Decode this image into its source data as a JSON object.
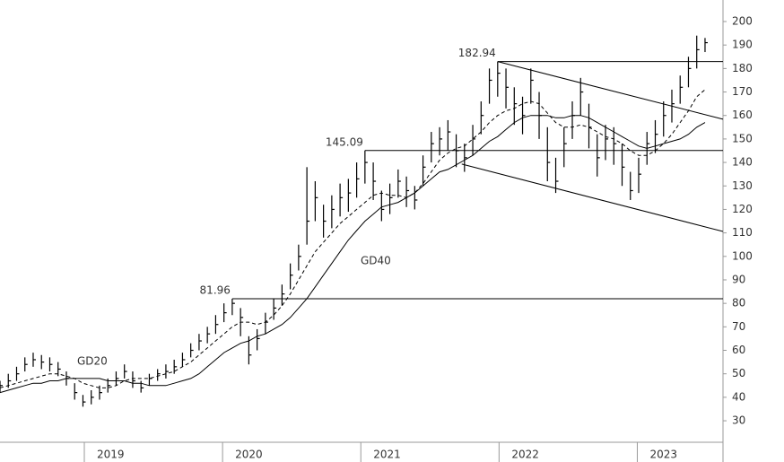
{
  "chart_data": {
    "type": "ohlc",
    "color": "#000000",
    "xlim": [
      2018.39,
      2023.62
    ],
    "xticks": [
      2019,
      2020,
      2021,
      2022,
      2023
    ],
    "ylim": [
      20.85,
      209.17
    ],
    "yticks": [
      30,
      40,
      50,
      60,
      70,
      80,
      90,
      100,
      110,
      120,
      130,
      140,
      150,
      160,
      170,
      180,
      190,
      200
    ],
    "x": [
      2018.39,
      2018.45,
      2018.51,
      2018.57,
      2018.63,
      2018.69,
      2018.75,
      2018.81,
      2018.87,
      2018.93,
      2018.99,
      2019.05,
      2019.11,
      2019.17,
      2019.23,
      2019.29,
      2019.35,
      2019.41,
      2019.47,
      2019.53,
      2019.59,
      2019.65,
      2019.71,
      2019.77,
      2019.83,
      2019.89,
      2019.95,
      2020.01,
      2020.07,
      2020.13,
      2020.19,
      2020.25,
      2020.31,
      2020.37,
      2020.43,
      2020.49,
      2020.55,
      2020.61,
      2020.67,
      2020.73,
      2020.79,
      2020.85,
      2020.91,
      2020.97,
      2021.03,
      2021.09,
      2021.15,
      2021.21,
      2021.27,
      2021.33,
      2021.39,
      2021.45,
      2021.51,
      2021.57,
      2021.63,
      2021.69,
      2021.75,
      2021.81,
      2021.87,
      2021.93,
      2021.99,
      2022.05,
      2022.11,
      2022.17,
      2022.23,
      2022.29,
      2022.35,
      2022.41,
      2022.47,
      2022.53,
      2022.59,
      2022.65,
      2022.71,
      2022.77,
      2022.83,
      2022.89,
      2022.95,
      2023.01,
      2023.07,
      2023.13,
      2023.19,
      2023.25,
      2023.31,
      2023.37,
      2023.43,
      2023.49
    ],
    "high": [
      47,
      50,
      53,
      57,
      59,
      58,
      57,
      55,
      51,
      46,
      41,
      43,
      45,
      48,
      51,
      54,
      51,
      47,
      50,
      52,
      54,
      56,
      59,
      63,
      67,
      70,
      75,
      80,
      81.96,
      78,
      66,
      69,
      76,
      82,
      88,
      97,
      105,
      138,
      132,
      122,
      126,
      131,
      133,
      140,
      145.09,
      140,
      128,
      131,
      137,
      134,
      130,
      143,
      153,
      155,
      158,
      152,
      148,
      156,
      166,
      180,
      182.94,
      180,
      172,
      168,
      180,
      170,
      155,
      142,
      155,
      166,
      176,
      165,
      152,
      156,
      155,
      148,
      136,
      142,
      153,
      158,
      166,
      171,
      177,
      185,
      194,
      193
    ],
    "low": [
      42,
      44,
      47,
      51,
      53,
      52,
      51,
      49,
      45,
      39,
      36,
      37,
      39,
      42,
      45,
      48,
      44,
      42,
      45,
      47,
      48,
      50,
      53,
      57,
      60,
      63,
      67,
      72,
      75,
      66,
      54,
      60,
      67,
      73,
      79,
      86,
      94,
      105,
      115,
      108,
      112,
      117,
      119,
      125,
      131,
      124,
      115,
      118,
      125,
      121,
      120,
      130,
      140,
      143,
      145,
      138,
      136,
      143,
      152,
      165,
      168,
      163,
      156,
      152,
      165,
      150,
      132,
      127,
      138,
      150,
      160,
      146,
      134,
      141,
      139,
      130,
      124,
      127,
      139,
      144,
      151,
      157,
      165,
      172,
      180,
      187
    ],
    "close": [
      45,
      47,
      50,
      54,
      56,
      55,
      54,
      52,
      48,
      42,
      38,
      40,
      42,
      45,
      48,
      51,
      47,
      44,
      48,
      50,
      51,
      53,
      56,
      60,
      64,
      67,
      71,
      76,
      80,
      74,
      58,
      65,
      72,
      78,
      84,
      92,
      100,
      115,
      125,
      115,
      120,
      125,
      127,
      133,
      140,
      132,
      120,
      125,
      132,
      128,
      124,
      138,
      148,
      150,
      153,
      145,
      142,
      150,
      160,
      175,
      178,
      172,
      165,
      160,
      175,
      160,
      140,
      132,
      148,
      160,
      170,
      155,
      142,
      150,
      148,
      138,
      128,
      135,
      148,
      152,
      160,
      165,
      172,
      180,
      188,
      191
    ],
    "moving_averages": [
      {
        "name": "GD20",
        "dashed": true,
        "values": [
          44,
          45,
          46,
          47,
          48,
          49,
          50,
          50,
          49,
          48,
          46,
          45,
          44,
          44,
          45,
          47,
          48,
          48,
          48,
          49,
          50,
          51,
          53,
          55,
          58,
          61,
          64,
          67,
          70,
          72,
          72,
          71,
          72,
          75,
          79,
          84,
          90,
          96,
          102,
          106,
          110,
          114,
          117,
          120,
          123,
          126,
          127,
          126,
          126,
          125,
          127,
          131,
          136,
          141,
          144,
          146,
          147,
          150,
          153,
          157,
          160,
          162,
          163,
          165,
          166,
          165,
          161,
          157,
          155,
          155,
          156,
          155,
          153,
          151,
          150,
          148,
          145,
          143,
          143,
          145,
          148,
          152,
          157,
          162,
          168,
          171
        ]
      },
      {
        "name": "GD40",
        "dashed": false,
        "values": [
          42,
          43,
          44,
          45,
          46,
          46,
          47,
          47,
          48,
          48,
          48,
          48,
          48,
          47,
          47,
          47,
          46,
          46,
          45,
          45,
          45,
          46,
          47,
          48,
          50,
          53,
          56,
          59,
          61,
          63,
          64,
          66,
          67,
          69,
          71,
          74,
          78,
          82,
          87,
          92,
          97,
          102,
          107,
          111,
          115,
          118,
          121,
          122,
          123,
          125,
          127,
          130,
          133,
          136,
          137,
          139,
          141,
          143,
          146,
          149,
          151,
          154,
          157,
          159,
          160,
          160,
          160,
          159,
          159,
          160,
          160,
          159,
          157,
          155,
          153,
          151,
          149,
          147,
          146,
          147,
          148,
          149,
          150,
          152,
          155,
          157
        ]
      }
    ],
    "levels": [
      {
        "value": 81.96,
        "x": 2020.07
      },
      {
        "value": 145.09,
        "x": 2021.03
      },
      {
        "value": 182.94,
        "x": 2021.99
      }
    ],
    "trendlines": [
      {
        "x": [
          2021.99,
          2023.62
        ],
        "y": [
          182.94,
          158.4
        ]
      },
      {
        "x": [
          2021.73,
          2023.62
        ],
        "y": [
          139.3,
          110.6
        ]
      }
    ]
  }
}
